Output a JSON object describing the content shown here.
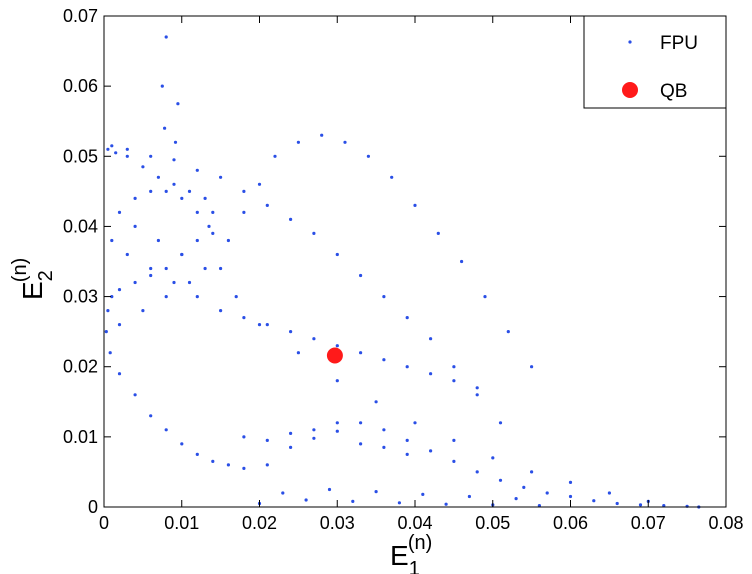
{
  "chart_data": {
    "type": "scatter",
    "xlabel": {
      "base": "E",
      "sub": "1",
      "sup": "(n)"
    },
    "ylabel": {
      "base": "E",
      "sub": "2",
      "sup": "(n)"
    },
    "xlim": [
      0,
      0.08
    ],
    "ylim": [
      0,
      0.07
    ],
    "x_ticks": [
      "0",
      "0.01",
      "0.02",
      "0.03",
      "0.04",
      "0.05",
      "0.06",
      "0.07",
      "0.08"
    ],
    "y_ticks": [
      "0",
      "0.01",
      "0.02",
      "0.03",
      "0.04",
      "0.05",
      "0.06",
      "0.07"
    ],
    "grid": false,
    "legend_position": "top-right",
    "series": [
      {
        "name": "FPU",
        "color": "#2a4fe6",
        "marker": "dot",
        "x": [
          0.0005,
          0.0015,
          0.003,
          0.005,
          0.007,
          0.009,
          0.011,
          0.013,
          0.014,
          0.0135,
          0.012,
          0.01,
          0.008,
          0.006,
          0.004,
          0.002,
          0.001,
          0.0005,
          0.0003,
          0.0008,
          0.002,
          0.004,
          0.006,
          0.008,
          0.01,
          0.012,
          0.014,
          0.016,
          0.018,
          0.021,
          0.024,
          0.027,
          0.03,
          0.033,
          0.036,
          0.039,
          0.042,
          0.045,
          0.048,
          0.051,
          0.054,
          0.057,
          0.06,
          0.063,
          0.066,
          0.069,
          0.072,
          0.075,
          0.0765,
          0.07,
          0.065,
          0.06,
          0.055,
          0.05,
          0.045,
          0.04,
          0.035,
          0.03,
          0.025,
          0.02,
          0.017,
          0.015,
          0.016,
          0.018,
          0.02,
          0.022,
          0.025,
          0.028,
          0.031,
          0.034,
          0.037,
          0.04,
          0.043,
          0.046,
          0.049,
          0.052,
          0.055,
          0.008,
          0.0075,
          0.0078,
          0.0095,
          0.0092,
          0.001,
          0.003,
          0.006,
          0.009,
          0.012,
          0.015,
          0.018,
          0.021,
          0.024,
          0.027,
          0.03,
          0.033,
          0.036,
          0.039,
          0.042,
          0.045,
          0.048,
          0.051,
          0.02,
          0.023,
          0.026,
          0.029,
          0.032,
          0.035,
          0.038,
          0.041,
          0.044,
          0.047,
          0.05,
          0.053,
          0.056,
          0.018,
          0.021,
          0.024,
          0.027,
          0.03,
          0.033,
          0.036,
          0.039,
          0.015,
          0.018,
          0.021,
          0.024,
          0.027,
          0.03,
          0.033,
          0.036,
          0.039,
          0.042,
          0.045,
          0.048,
          0.004,
          0.006,
          0.008,
          0.01,
          0.012,
          0.014,
          0.002,
          0.005,
          0.008,
          0.011,
          0.013,
          0.01,
          0.007,
          0.004,
          0.002,
          0.001,
          0.003,
          0.006,
          0.009,
          0.012
        ],
        "y": [
          0.051,
          0.0505,
          0.05,
          0.0485,
          0.047,
          0.046,
          0.045,
          0.044,
          0.042,
          0.04,
          0.038,
          0.036,
          0.034,
          0.033,
          0.032,
          0.031,
          0.03,
          0.028,
          0.025,
          0.022,
          0.019,
          0.016,
          0.013,
          0.011,
          0.009,
          0.0075,
          0.0065,
          0.006,
          0.0055,
          0.006,
          0.0085,
          0.011,
          0.012,
          0.012,
          0.011,
          0.0095,
          0.008,
          0.0065,
          0.005,
          0.0038,
          0.0028,
          0.002,
          0.0015,
          0.0009,
          0.0005,
          0.0003,
          0.0002,
          0.0001,
          0.0,
          0.0008,
          0.002,
          0.0035,
          0.005,
          0.007,
          0.0095,
          0.012,
          0.015,
          0.018,
          0.022,
          0.026,
          0.03,
          0.034,
          0.038,
          0.042,
          0.046,
          0.05,
          0.052,
          0.053,
          0.052,
          0.05,
          0.047,
          0.043,
          0.039,
          0.035,
          0.03,
          0.025,
          0.02,
          0.067,
          0.06,
          0.054,
          0.0575,
          0.052,
          0.0515,
          0.051,
          0.05,
          0.0495,
          0.048,
          0.047,
          0.045,
          0.043,
          0.041,
          0.039,
          0.036,
          0.033,
          0.03,
          0.027,
          0.024,
          0.02,
          0.016,
          0.012,
          0.0005,
          0.002,
          0.001,
          0.0025,
          0.0008,
          0.0022,
          0.0006,
          0.0018,
          0.0004,
          0.0015,
          0.0003,
          0.0012,
          0.0002,
          0.01,
          0.0095,
          0.0105,
          0.0098,
          0.0108,
          0.009,
          0.0085,
          0.0075,
          0.028,
          0.027,
          0.026,
          0.025,
          0.024,
          0.023,
          0.022,
          0.021,
          0.02,
          0.019,
          0.018,
          0.017,
          0.044,
          0.045,
          0.045,
          0.044,
          0.042,
          0.039,
          0.026,
          0.028,
          0.03,
          0.032,
          0.034,
          0.036,
          0.038,
          0.04,
          0.042,
          0.038,
          0.036,
          0.034,
          0.032,
          0.03
        ]
      },
      {
        "name": "QB",
        "color": "#ff1a1a",
        "marker": "circle",
        "x": [
          0.0297
        ],
        "y": [
          0.0216
        ]
      }
    ]
  }
}
